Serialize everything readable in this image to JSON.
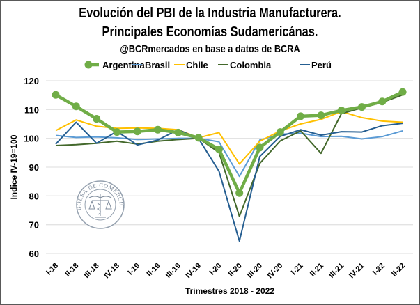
{
  "chart_data": {
    "type": "line",
    "title": "Evolución del PBI de la Industria Manufacturera.",
    "subtitle": "Principales Economías Sudamericánas.",
    "source": "@BCRmercados en base a datos de BCRA",
    "xlabel": "Trimestres 2018 - 2022",
    "ylabel": "Indice  IV-19=100",
    "ylim": [
      60,
      120
    ],
    "yticks": [
      60,
      70,
      80,
      90,
      100,
      110,
      120
    ],
    "grid": true,
    "legend_position": "top",
    "categories": [
      "I-18",
      "II-18",
      "III-18",
      "IV-18",
      "I-19",
      "II-19",
      "III-19",
      "IV-19",
      "I-20",
      "II-20",
      "III-20",
      "IV-20",
      "I-21",
      "II-21",
      "III-21",
      "IV-21",
      "I-22",
      "II-22"
    ],
    "series": [
      {
        "name": "Argentina",
        "color": "#70AD47",
        "markers": true,
        "values": [
          115.1,
          111.1,
          106.8,
          102.2,
          102.4,
          103.0,
          102.0,
          100.2,
          96.2,
          81.0,
          96.8,
          102.2,
          107.7,
          108.0,
          109.7,
          110.9,
          112.8,
          116.1
        ]
      },
      {
        "name": "Brasil",
        "color": "#5B9BD5",
        "markers": false,
        "values": [
          101.0,
          100.3,
          100.5,
          100.2,
          99.6,
          99.8,
          100.0,
          100.0,
          98.8,
          86.8,
          99.4,
          101.4,
          101.8,
          100.6,
          100.7,
          99.8,
          100.6,
          102.6
        ]
      },
      {
        "name": "Chile",
        "color": "#FFC000",
        "markers": false,
        "values": [
          102.7,
          106.4,
          104.2,
          103.5,
          103.6,
          103.5,
          103.0,
          100.2,
          102.0,
          91.1,
          99.0,
          102.6,
          105.0,
          106.6,
          109.3,
          107.2,
          106.0,
          105.6
        ]
      },
      {
        "name": "Colombia",
        "color": "#43682B",
        "markers": false,
        "values": [
          97.5,
          97.8,
          98.3,
          99.0,
          98.0,
          99.0,
          99.6,
          100.0,
          95.1,
          72.9,
          91.3,
          99.1,
          102.6,
          94.8,
          108.6,
          110.6,
          112.5,
          115.1
        ]
      },
      {
        "name": "Perú",
        "color": "#255E91",
        "markers": false,
        "values": [
          98.0,
          105.6,
          98.3,
          102.4,
          97.7,
          99.4,
          103.0,
          99.9,
          88.6,
          64.3,
          93.7,
          100.7,
          103.0,
          101.1,
          102.3,
          102.2,
          104.4,
          105.2
        ]
      }
    ]
  },
  "watermark": {
    "text": "BOLSA DE COMERCIO DE ROSARIO",
    "icon": "caduceus-scales-seal-icon"
  }
}
